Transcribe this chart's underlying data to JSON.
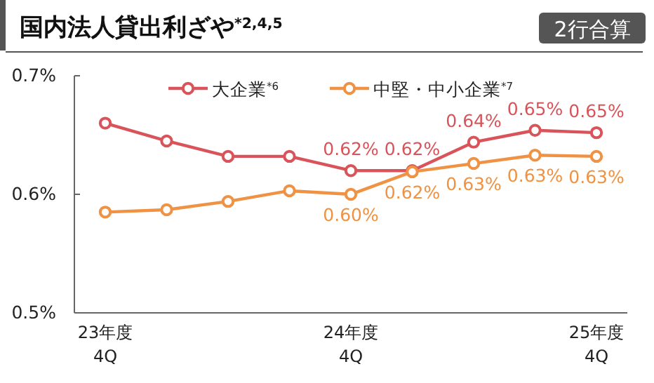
{
  "chart_data": {
    "type": "line",
    "title": "国内法人貸出利ざや$^{*2,4,5}$",
    "annotations": [
      "2行合算"
    ],
    "categories": [
      "23年度\n4Q",
      null,
      null,
      null,
      "24年度\n4Q",
      null,
      null,
      null,
      "25年度\n4Q"
    ],
    "series": [
      {
        "name": "大企業$^{*6}$",
        "color": "#d9545a",
        "values": [
          0.66,
          0.645,
          0.632,
          0.632,
          0.62,
          0.62,
          0.644,
          0.654,
          0.652
        ],
        "value_labels": [
          null,
          null,
          null,
          null,
          "0.62%",
          "0.62%",
          "0.64%",
          "0.65%",
          "0.65%"
        ]
      },
      {
        "name": "中堅・中小企業$^{*7}$",
        "color": "#ef9243",
        "values": [
          0.585,
          0.587,
          0.594,
          0.603,
          0.6,
          0.619,
          0.626,
          0.633,
          0.632
        ],
        "value_labels": [
          null,
          null,
          null,
          null,
          "0.60%",
          "0.62%",
          "0.63%",
          "0.63%",
          "0.63%"
        ]
      }
    ],
    "ylim": [
      0.5,
      0.7
    ],
    "yticks": [
      {
        "value": 0.5,
        "label": "0.5%"
      },
      {
        "value": 0.6,
        "label": "0.6%"
      },
      {
        "value": 0.7,
        "label": "0.7%"
      }
    ],
    "grid": false,
    "legend": "top",
    "marker": "circle",
    "line_style": "solid"
  }
}
